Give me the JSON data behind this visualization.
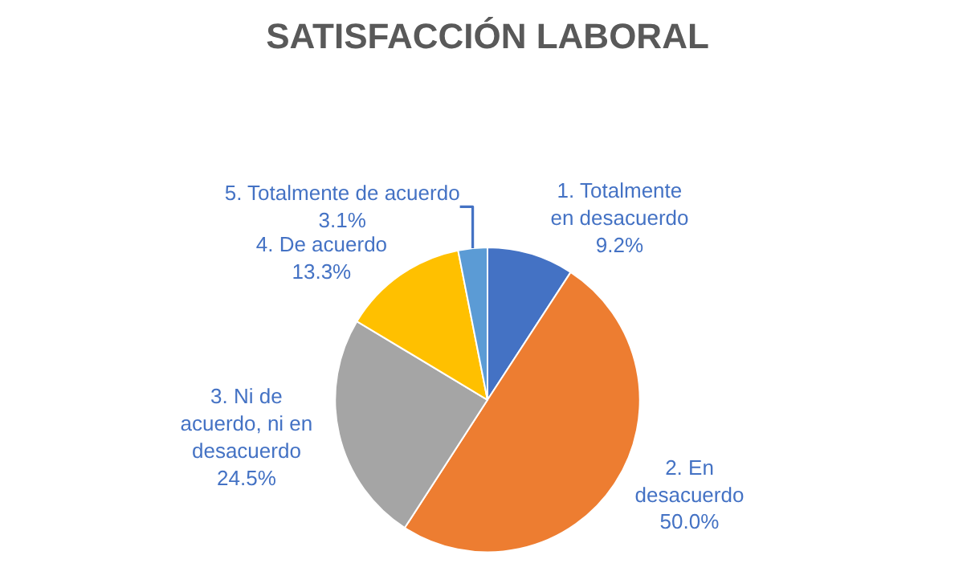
{
  "chart_data": {
    "type": "pie",
    "title": "SATISFACCIÓN LABORAL",
    "categories": [
      "1. Totalmente en desacuerdo",
      "2. En desacuerdo",
      "3. Ni de acuerdo, ni en desacuerdo",
      "4. De acuerdo",
      "5. Totalmente de acuerdo"
    ],
    "values": [
      9.2,
      50.0,
      24.5,
      13.3,
      3.1
    ],
    "value_labels": [
      "9.2%",
      "50.0%",
      "24.5%",
      "13.3%",
      "3.1%"
    ],
    "colors": [
      "#4472c4",
      "#ed7d31",
      "#a5a5a5",
      "#ffc000",
      "#5b9bd5"
    ]
  }
}
